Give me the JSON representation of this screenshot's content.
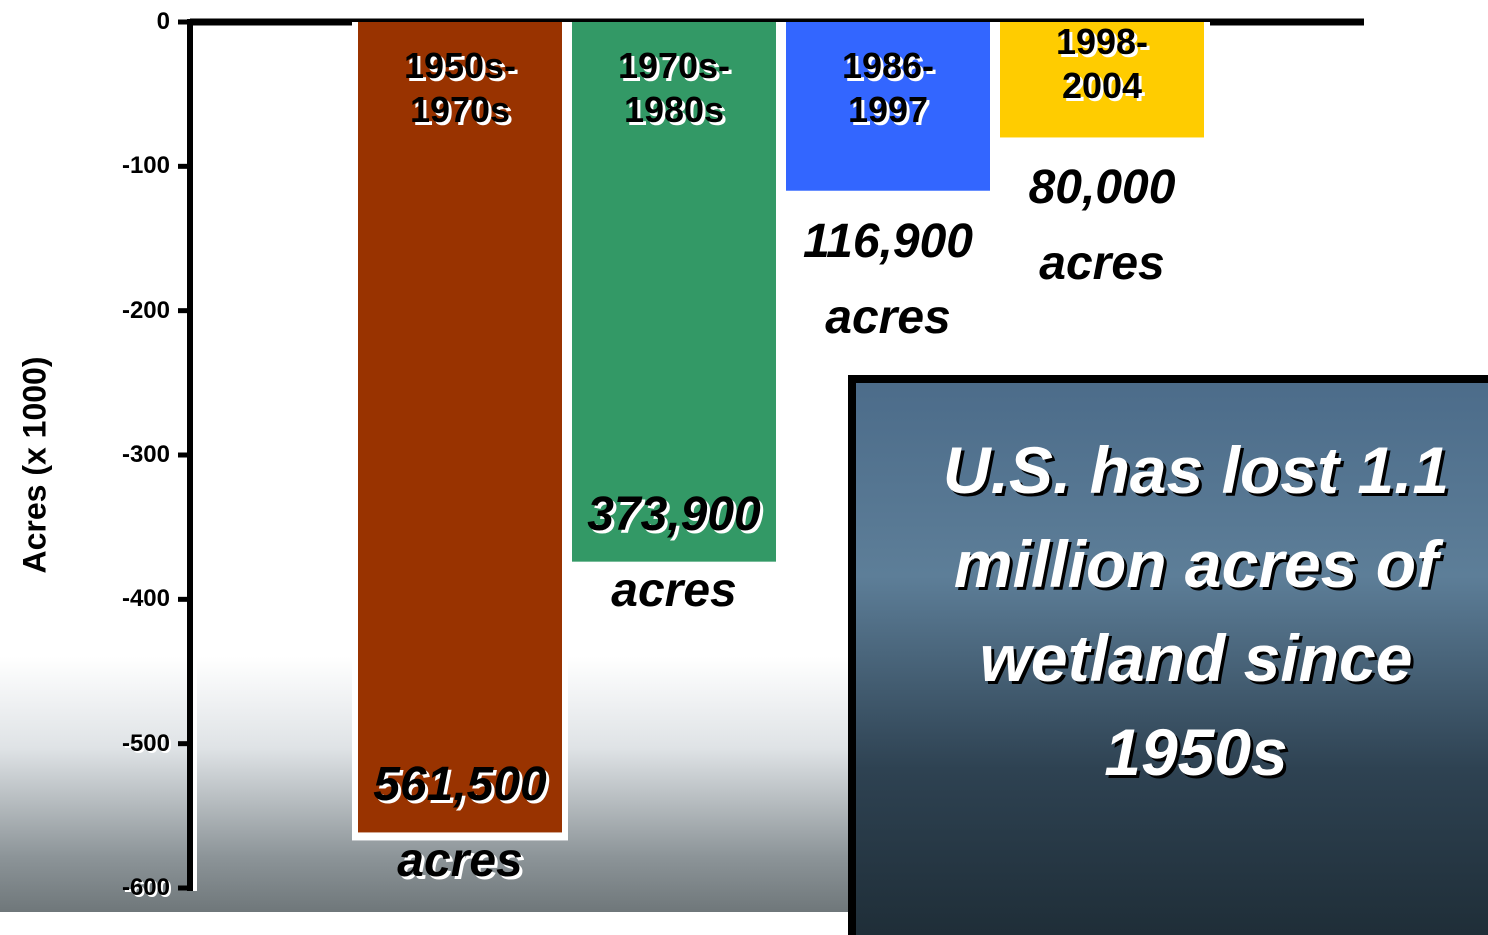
{
  "chart_data": {
    "type": "bar",
    "y_label": "Acres (x 1000)",
    "categories": [
      "1950s-1970s",
      "1970s-1980s",
      "1986-1997",
      "1998-2004"
    ],
    "values": [
      -561.5,
      -373.9,
      -116.9,
      -80
    ],
    "value_labels": [
      "561,500 acres",
      "373,900 acres",
      "116,900 acres",
      "80,000 acres"
    ],
    "colors": [
      "#993300",
      "#339966",
      "#3366ff",
      "#ffcc00"
    ],
    "ylim": [
      -600,
      0
    ],
    "yticks": [
      0,
      -100,
      -200,
      -300,
      -400,
      -500,
      -600
    ],
    "annotation": "U.S. has lost 1.1 million acres of wetland since 1950s"
  }
}
